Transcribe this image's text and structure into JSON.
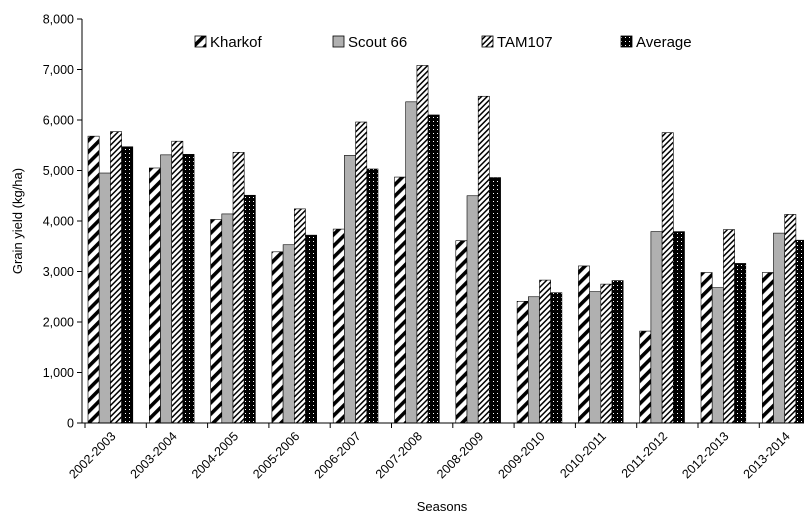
{
  "chart_data": {
    "type": "bar",
    "title": "",
    "xlabel": "Seasons",
    "ylabel": "Grain yield (kg/ha)",
    "ylim": [
      0,
      8000
    ],
    "yticks": [
      0,
      1000,
      2000,
      3000,
      4000,
      5000,
      6000,
      7000,
      8000
    ],
    "ytick_labels": [
      "0",
      "1,000",
      "2,000",
      "3,000",
      "4,000",
      "5,000",
      "6,000",
      "7,000",
      "8,000"
    ],
    "grid": false,
    "legend_position": "top",
    "categories": [
      "2002-2003",
      "2003-2004",
      "2004-2005",
      "2005-2006",
      "2006-2007",
      "2007-2008",
      "2008-2009",
      "2009-2010",
      "2010-2011",
      "2011-2012",
      "2012-2013",
      "2013-2014"
    ],
    "series": [
      {
        "name": "Kharkof",
        "pattern": "wide-diagonal-hatch",
        "color": "#000000",
        "values": [
          5680,
          5050,
          4030,
          3390,
          3840,
          4870,
          3610,
          2410,
          3110,
          1820,
          2980,
          2980
        ]
      },
      {
        "name": "Scout 66",
        "pattern": "solid",
        "color": "#b0b0b0",
        "values": [
          4950,
          5310,
          4140,
          3530,
          5300,
          6360,
          4500,
          2500,
          2600,
          3790,
          2680,
          3760
        ]
      },
      {
        "name": "TAM107",
        "pattern": "fine-diagonal-hatch",
        "color": "#000000",
        "values": [
          5770,
          5580,
          5360,
          4240,
          5960,
          7080,
          6470,
          2830,
          2750,
          5750,
          3830,
          4130
        ]
      },
      {
        "name": "Average",
        "pattern": "black-with-white-dots",
        "color": "#000000",
        "values": [
          5470,
          5320,
          4510,
          3720,
          5030,
          6100,
          4860,
          2580,
          2820,
          3790,
          3160,
          3620
        ]
      }
    ]
  }
}
